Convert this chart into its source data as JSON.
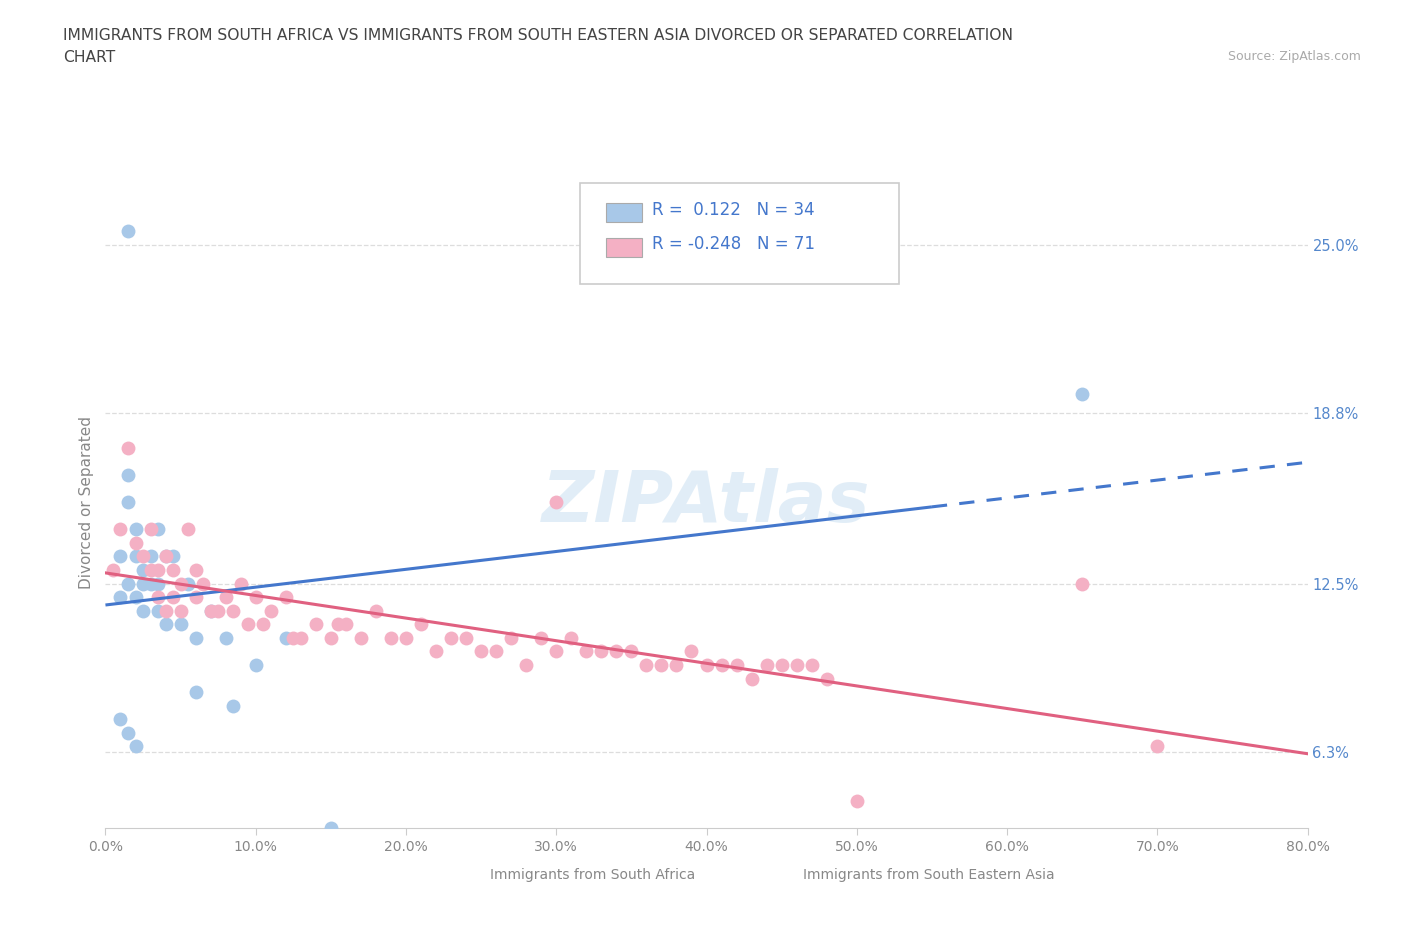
{
  "title_line1": "IMMIGRANTS FROM SOUTH AFRICA VS IMMIGRANTS FROM SOUTH EASTERN ASIA DIVORCED OR SEPARATED CORRELATION",
  "title_line2": "CHART",
  "source_text": "Source: ZipAtlas.com",
  "ylabel": "Divorced or Separated",
  "xmin": 0.0,
  "xmax": 80.0,
  "ymin": 3.5,
  "ymax": 27.5,
  "ytick_positions": [
    6.3,
    12.5,
    18.8,
    25.0
  ],
  "ytick_labels": [
    "6.3%",
    "12.5%",
    "18.8%",
    "25.0%"
  ],
  "xtick_positions": [
    0.0,
    10.0,
    20.0,
    30.0,
    40.0,
    50.0,
    60.0,
    70.0,
    80.0
  ],
  "xtick_labels": [
    "0.0%",
    "10.0%",
    "20.0%",
    "30.0%",
    "40.0%",
    "50.0%",
    "60.0%",
    "70.0%",
    "80.0%"
  ],
  "blue_R": "0.122",
  "blue_N": "34",
  "pink_R": "-0.248",
  "pink_N": "71",
  "blue_scatter_color": "#a8c8e8",
  "pink_scatter_color": "#f4b0c4",
  "blue_line_color": "#4477cc",
  "pink_line_color": "#e06080",
  "blue_label": "Immigrants from South Africa",
  "pink_label": "Immigrants from South Eastern Asia",
  "watermark": "ZIPAtlas",
  "bg_color": "#ffffff",
  "title_color": "#444444",
  "axis_label_color": "#888888",
  "tick_color": "#888888",
  "right_tick_color": "#5588cc",
  "grid_color": "#dddddd",
  "blue_x": [
    1.0,
    1.0,
    1.0,
    1.5,
    1.5,
    1.5,
    1.5,
    2.0,
    2.0,
    2.0,
    2.0,
    2.5,
    2.5,
    2.5,
    3.0,
    3.0,
    3.5,
    3.5,
    3.5,
    4.0,
    4.0,
    4.5,
    5.0,
    5.5,
    6.0,
    6.0,
    7.0,
    8.0,
    8.5,
    10.0,
    12.0,
    15.0,
    65.0,
    1.5
  ],
  "blue_y": [
    13.5,
    12.0,
    7.5,
    16.5,
    15.5,
    12.5,
    7.0,
    14.5,
    13.5,
    12.0,
    6.5,
    13.0,
    12.5,
    11.5,
    13.5,
    12.5,
    14.5,
    12.5,
    11.5,
    13.5,
    11.0,
    13.5,
    11.0,
    12.5,
    10.5,
    8.5,
    11.5,
    10.5,
    8.0,
    9.5,
    10.5,
    3.5,
    19.5,
    25.5
  ],
  "pink_x": [
    0.5,
    1.0,
    1.5,
    2.0,
    2.5,
    3.0,
    3.0,
    3.5,
    3.5,
    4.0,
    4.0,
    4.5,
    4.5,
    5.0,
    5.0,
    5.5,
    6.0,
    6.0,
    6.5,
    7.0,
    7.5,
    8.0,
    8.5,
    9.0,
    9.5,
    10.0,
    10.5,
    11.0,
    12.0,
    12.5,
    13.0,
    14.0,
    15.0,
    15.5,
    16.0,
    17.0,
    18.0,
    19.0,
    20.0,
    21.0,
    22.0,
    23.0,
    24.0,
    25.0,
    26.0,
    27.0,
    28.0,
    29.0,
    30.0,
    31.0,
    32.0,
    33.0,
    34.0,
    35.0,
    36.0,
    37.0,
    38.0,
    39.0,
    40.0,
    41.0,
    42.0,
    43.0,
    44.0,
    45.0,
    46.0,
    47.0,
    48.0,
    50.0,
    65.0,
    70.0,
    30.0
  ],
  "pink_y": [
    13.0,
    14.5,
    17.5,
    14.0,
    13.5,
    13.0,
    14.5,
    13.0,
    12.0,
    13.5,
    11.5,
    13.0,
    12.0,
    12.5,
    11.5,
    14.5,
    13.0,
    12.0,
    12.5,
    11.5,
    11.5,
    12.0,
    11.5,
    12.5,
    11.0,
    12.0,
    11.0,
    11.5,
    12.0,
    10.5,
    10.5,
    11.0,
    10.5,
    11.0,
    11.0,
    10.5,
    11.5,
    10.5,
    10.5,
    11.0,
    10.0,
    10.5,
    10.5,
    10.0,
    10.0,
    10.5,
    9.5,
    10.5,
    10.0,
    10.5,
    10.0,
    10.0,
    10.0,
    10.0,
    9.5,
    9.5,
    9.5,
    10.0,
    9.5,
    9.5,
    9.5,
    9.0,
    9.5,
    9.5,
    9.5,
    9.5,
    9.0,
    4.5,
    12.5,
    6.5,
    15.5
  ]
}
